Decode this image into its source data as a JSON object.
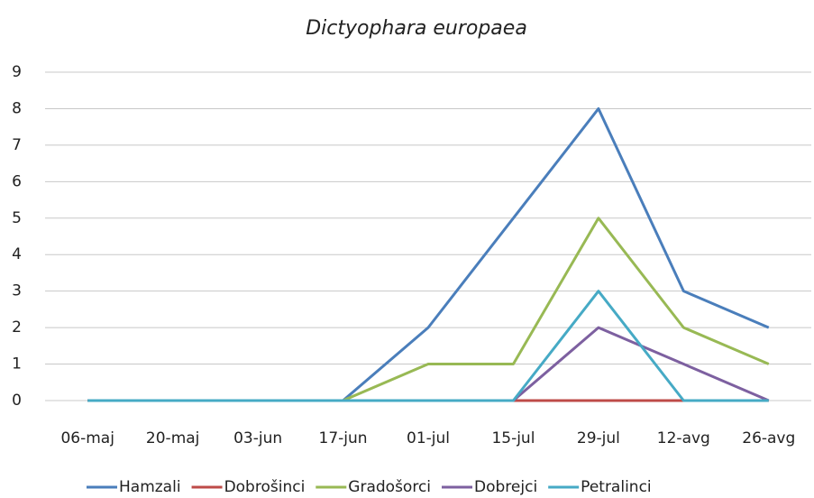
{
  "chart_data": {
    "type": "line",
    "title": "Dictyophara europaea",
    "categories": [
      "06-maj",
      "20-maj",
      "03-jun",
      "17-jun",
      "01-jul",
      "15-jul",
      "29-jul",
      "12-avg",
      "26-avg"
    ],
    "series": [
      {
        "name": "Hamzali",
        "color": "#4a7ebb",
        "values": [
          0,
          0,
          0,
          0,
          2,
          5,
          8,
          3,
          2
        ]
      },
      {
        "name": "Dobrošinci",
        "color": "#be4b48",
        "values": [
          0,
          0,
          0,
          0,
          0,
          0,
          0,
          0,
          0
        ]
      },
      {
        "name": "Gradošorci",
        "color": "#98b954",
        "values": [
          0,
          0,
          0,
          0,
          1,
          1,
          5,
          2,
          1
        ]
      },
      {
        "name": "Dobrejci",
        "color": "#7d60a0",
        "values": [
          0,
          0,
          0,
          0,
          0,
          0,
          2,
          1,
          0
        ]
      },
      {
        "name": "Petralinci",
        "color": "#46aac5",
        "values": [
          0,
          0,
          0,
          0,
          0,
          0,
          3,
          0,
          0
        ]
      }
    ],
    "ylim": [
      0,
      9
    ],
    "yticks": [
      0,
      1,
      2,
      3,
      4,
      5,
      6,
      7,
      8,
      9
    ],
    "grid": true,
    "legend": "bottom"
  }
}
